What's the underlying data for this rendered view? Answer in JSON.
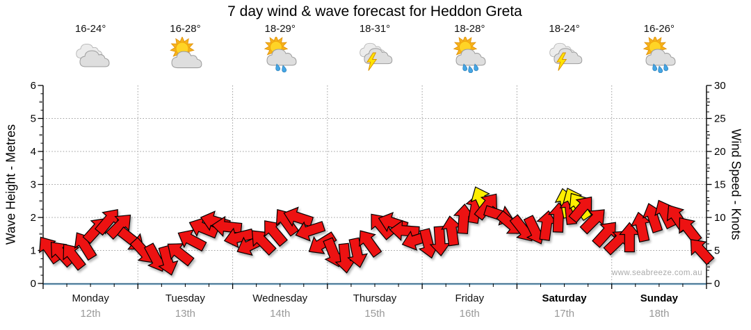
{
  "page": {
    "title": "7 day wind & wave forecast for Heddon Greta",
    "watermark": "www.seabreeze.com.au"
  },
  "chart_data": {
    "type": "scatter",
    "variant": "wind-direction-arrow-series",
    "title": "7 day wind & wave forecast for Heddon Greta",
    "x_axis": {
      "unit": "hours from Monday 00:00",
      "range": [
        0,
        168
      ],
      "major_tick_hours": 24,
      "minor_tick_hours": 6
    },
    "left_axis": {
      "title": "Wave Height - Metres",
      "range": [
        0,
        6
      ],
      "tick_labels": [
        "0",
        "1",
        "2",
        "3",
        "4",
        "5",
        "6"
      ]
    },
    "right_axis": {
      "title": "Wind Speed - Knots",
      "range": [
        0,
        30
      ],
      "tick_labels": [
        "0",
        "5",
        "10",
        "15",
        "20",
        "25",
        "30"
      ]
    },
    "scale_note": "1 metre on left axis aligns with 5 knots on right axis; arrow height plots wind speed in knots",
    "grid": "dotted horizontal lines every 1 m / 5 kn; dotted vertical lines at day boundaries",
    "days": [
      {
        "name": "Monday",
        "date": "12th",
        "temp": "16-24°",
        "icon": "cloudy",
        "drops": 0,
        "bold": false
      },
      {
        "name": "Tuesday",
        "date": "13th",
        "temp": "16-28°",
        "icon": "partly-cloudy",
        "drops": 0,
        "bold": false
      },
      {
        "name": "Wednesday",
        "date": "14th",
        "temp": "18-29°",
        "icon": "sun-showers",
        "drops": 2,
        "bold": false
      },
      {
        "name": "Thursday",
        "date": "15th",
        "temp": "18-31°",
        "icon": "storm",
        "drops": 0,
        "bold": false
      },
      {
        "name": "Friday",
        "date": "16th",
        "temp": "18-28°",
        "icon": "sun-showers",
        "drops": 3,
        "bold": false
      },
      {
        "name": "Saturday",
        "date": "17th",
        "temp": "18-24°",
        "icon": "storm",
        "drops": 0,
        "bold": true
      },
      {
        "name": "Sunday",
        "date": "18th",
        "temp": "16-26°",
        "icon": "sun-showers",
        "drops": 3,
        "bold": true
      }
    ],
    "arrow_format": [
      "hours",
      "knots",
      "dir_deg (0=up on screen, clockwise+)",
      "color r|y"
    ],
    "arrow_colors": {
      "r": "#ed1212",
      "y": "#ffee00"
    },
    "arrows": [
      [
        1.5,
        5.2,
        -35,
        "r"
      ],
      [
        4.5,
        4.6,
        -42,
        "r"
      ],
      [
        7.5,
        4.2,
        -38,
        "r"
      ],
      [
        10.5,
        5.8,
        -32,
        "r"
      ],
      [
        13.5,
        8.2,
        42,
        "r"
      ],
      [
        16.5,
        9.5,
        40,
        "r"
      ],
      [
        19.5,
        8.8,
        45,
        "r"
      ],
      [
        22.5,
        6.6,
        128,
        "r"
      ],
      [
        25.5,
        4.8,
        138,
        "r"
      ],
      [
        28.5,
        3.8,
        152,
        "r"
      ],
      [
        31.5,
        3.4,
        164,
        "r"
      ],
      [
        34.5,
        4.6,
        -52,
        "r"
      ],
      [
        37.5,
        6.6,
        -62,
        "r"
      ],
      [
        40.5,
        8.4,
        -68,
        "r"
      ],
      [
        43.5,
        9.4,
        -74,
        "r"
      ],
      [
        46.5,
        8.6,
        -84,
        "r"
      ],
      [
        49.5,
        7.0,
        -104,
        "r"
      ],
      [
        52.5,
        5.8,
        -116,
        "r"
      ],
      [
        55.5,
        6.4,
        -44,
        "r"
      ],
      [
        58.5,
        7.8,
        -40,
        "r"
      ],
      [
        61.5,
        9.4,
        -36,
        "r"
      ],
      [
        64.5,
        10.0,
        -72,
        "r"
      ],
      [
        67.5,
        8.0,
        -108,
        "r"
      ],
      [
        70.5,
        6.0,
        -122,
        "r"
      ],
      [
        73.5,
        4.6,
        158,
        "r"
      ],
      [
        76.5,
        3.8,
        174,
        "r"
      ],
      [
        79.5,
        4.6,
        168,
        "r"
      ],
      [
        82.5,
        6.2,
        -36,
        "r"
      ],
      [
        85.5,
        8.8,
        -40,
        "r"
      ],
      [
        88.5,
        9.2,
        -72,
        "r"
      ],
      [
        91.5,
        8.0,
        -86,
        "r"
      ],
      [
        94.5,
        6.6,
        -108,
        "r"
      ],
      [
        97.5,
        6.0,
        166,
        "r"
      ],
      [
        100.5,
        6.4,
        176,
        "r"
      ],
      [
        103.5,
        8.0,
        -8,
        "r"
      ],
      [
        106.5,
        9.8,
        4,
        "r"
      ],
      [
        109.5,
        11.4,
        10,
        "r"
      ],
      [
        111.0,
        12.6,
        -24,
        "y"
      ],
      [
        112.5,
        11.8,
        38,
        "r"
      ],
      [
        115.5,
        10.4,
        108,
        "r"
      ],
      [
        118.5,
        9.0,
        130,
        "r"
      ],
      [
        121.5,
        8.2,
        142,
        "r"
      ],
      [
        124.5,
        8.0,
        154,
        "r"
      ],
      [
        127.5,
        8.8,
        8,
        "r"
      ],
      [
        130.5,
        10.0,
        2,
        "r"
      ],
      [
        132.3,
        12.2,
        -12,
        "y"
      ],
      [
        133.5,
        11.2,
        -6,
        "r"
      ],
      [
        134.3,
        12.4,
        -24,
        "y"
      ],
      [
        135.8,
        11.8,
        -34,
        "y"
      ],
      [
        136.5,
        11.4,
        40,
        "r"
      ],
      [
        139.5,
        9.6,
        45,
        "r"
      ],
      [
        142.5,
        7.6,
        42,
        "r"
      ],
      [
        145.5,
        6.4,
        46,
        "r"
      ],
      [
        148.5,
        7.0,
        0,
        "r"
      ],
      [
        151.5,
        8.6,
        -12,
        "r"
      ],
      [
        154.5,
        10.0,
        -18,
        "r"
      ],
      [
        157.5,
        10.6,
        -26,
        "r"
      ],
      [
        160.5,
        10.0,
        -34,
        "r"
      ],
      [
        163.5,
        8.2,
        -38,
        "r"
      ],
      [
        166.5,
        5.0,
        -42,
        "r"
      ]
    ]
  },
  "colors": {
    "arrow_red": "#ed1212",
    "arrow_yellow": "#ffee00",
    "arrow_outline": "#000000",
    "grid_dotted": "#9a9a9a",
    "bottom_axis_blue": "#2e6385",
    "date_grey": "#999999",
    "watermark_grey": "#aaaaaa",
    "cloud_grey": "#dedede",
    "sun_yellow": "#ffd426",
    "rain_blue": "#45a6e5",
    "bolt_yellow": "#ffe400"
  }
}
